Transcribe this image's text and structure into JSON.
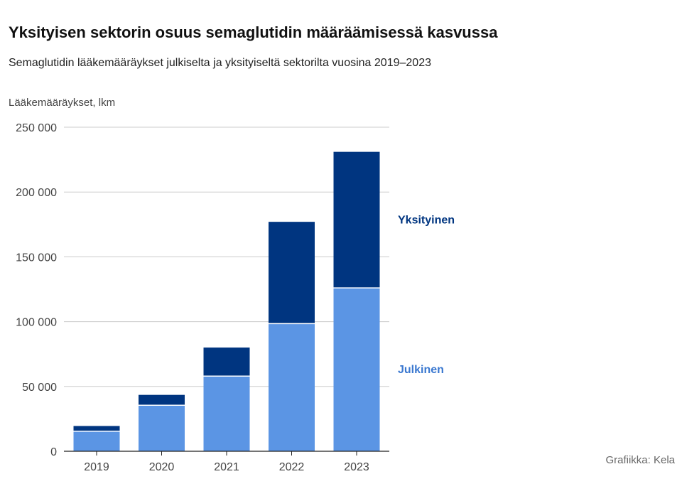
{
  "title": "Yksityisen sektorin osuus semaglutidin määräämisessä kasvussa",
  "subtitle": "Semaglutidin lääkemääräykset julkiselta ja yksityiseltä sektorilta vuosina 2019–2023",
  "source": "Grafiikka: Kela",
  "colors": {
    "julkinen": "#5b95e4",
    "yksityinen": "#003580",
    "grid": "#cccccc",
    "axis": "#222222"
  },
  "chart_data": {
    "type": "bar",
    "stacked": true,
    "ylabel": "Lääkemääräykset, lkm",
    "categories": [
      "2019",
      "2020",
      "2021",
      "2022",
      "2023"
    ],
    "series": [
      {
        "name": "Julkinen",
        "values": [
          15500,
          35500,
          58000,
          98500,
          126000
        ]
      },
      {
        "name": "Yksityinen",
        "values": [
          4000,
          8000,
          22000,
          78500,
          105000
        ]
      }
    ],
    "ylim": [
      0,
      250000
    ],
    "yticks": [
      0,
      50000,
      100000,
      150000,
      200000,
      250000
    ],
    "ytick_labels": [
      "0",
      "50 000",
      "100 000",
      "150 000",
      "200 000",
      "250 000"
    ],
    "grid": true,
    "legend": "right"
  }
}
